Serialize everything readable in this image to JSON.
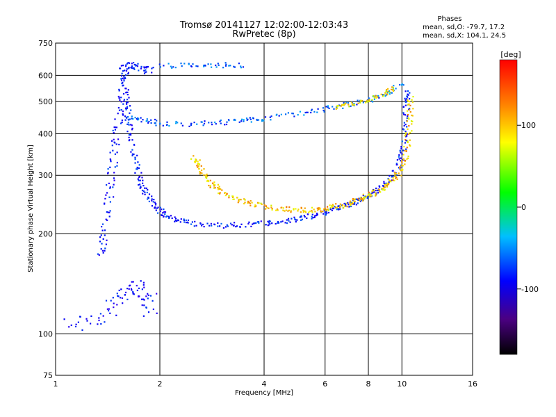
{
  "chart_data": {
    "type": "scatter",
    "title": "Tromsø 20141127 12:02:00-12:03:43",
    "subtitle": "RwPretec (8p)",
    "xlabel": "Frequency [MHz]",
    "ylabel": "Stationary phase Virtual Height [km]",
    "x_scale": "log",
    "y_scale": "log",
    "xlim": [
      1,
      16
    ],
    "ylim": [
      75,
      750
    ],
    "x_ticks": [
      1,
      2,
      4,
      6,
      8,
      10,
      16
    ],
    "y_ticks": [
      75,
      100,
      200,
      300,
      400,
      500,
      600,
      750
    ],
    "x_gridlines": [
      2,
      4,
      6,
      8,
      10
    ],
    "y_gridlines": [
      100,
      200,
      300,
      400,
      500,
      600
    ],
    "grid": true,
    "stats": {
      "heading": "Phases",
      "line1": "mean, sd,O: -79.7, 17.2",
      "line2": "mean, sd,X: 104.1, 24.5"
    },
    "colorbar": {
      "label": "[deg]",
      "range": [
        -180,
        180
      ],
      "ticks": [
        {
          "value": 100,
          "label": "100"
        },
        {
          "value": 0,
          "label": "0"
        },
        {
          "value": -100,
          "label": "-100"
        }
      ]
    },
    "traces": [
      {
        "name": "",
        "phase": -85,
        "spread": 0.035,
        "points": [
          [
            1.55,
            640
          ],
          [
            1.6,
            520
          ],
          [
            1.62,
            450
          ],
          [
            1.65,
            400
          ],
          [
            1.7,
            330
          ],
          [
            1.75,
            290
          ],
          [
            1.8,
            270
          ],
          [
            1.9,
            250
          ],
          [
            2.0,
            235
          ],
          [
            2.1,
            226
          ],
          [
            2.3,
            219
          ],
          [
            2.6,
            214
          ],
          [
            3.0,
            212
          ],
          [
            3.5,
            213
          ],
          [
            4.0,
            215
          ],
          [
            4.5,
            218
          ],
          [
            5.0,
            222
          ],
          [
            5.5,
            227
          ],
          [
            6.0,
            232
          ],
          [
            6.5,
            238
          ],
          [
            7.0,
            245
          ],
          [
            7.5,
            252
          ],
          [
            8.0,
            260
          ],
          [
            8.5,
            270
          ],
          [
            9.0,
            282
          ],
          [
            9.5,
            300
          ],
          [
            9.9,
            330
          ],
          [
            10.1,
            370
          ],
          [
            10.25,
            430
          ],
          [
            10.35,
            500
          ],
          [
            10.4,
            540
          ]
        ]
      },
      {
        "name": "",
        "phase": 125,
        "spread": 0.035,
        "points": [
          [
            2.5,
            340
          ],
          [
            2.6,
            320
          ],
          [
            2.7,
            300
          ],
          [
            2.85,
            280
          ],
          [
            3.0,
            268
          ],
          [
            3.3,
            256
          ],
          [
            3.6,
            248
          ],
          [
            4.0,
            242
          ],
          [
            4.5,
            238
          ],
          [
            5.0,
            236
          ],
          [
            5.5,
            236
          ],
          [
            6.0,
            238
          ],
          [
            6.5,
            242
          ],
          [
            7.0,
            247
          ],
          [
            7.5,
            253
          ],
          [
            8.0,
            260
          ],
          [
            8.5,
            268
          ],
          [
            9.0,
            278
          ],
          [
            9.5,
            292
          ],
          [
            10.0,
            315
          ],
          [
            10.3,
            350
          ],
          [
            10.45,
            400
          ],
          [
            10.55,
            460
          ],
          [
            10.6,
            520
          ]
        ]
      },
      {
        "name": "",
        "phase": -90,
        "spread": 0.05,
        "points": [
          [
            1.35,
            170
          ],
          [
            1.38,
            200
          ],
          [
            1.42,
            250
          ],
          [
            1.45,
            300
          ],
          [
            1.48,
            360
          ],
          [
            1.52,
            420
          ],
          [
            1.55,
            500
          ],
          [
            1.58,
            580
          ],
          [
            1.6,
            640
          ],
          [
            1.7,
            640
          ],
          [
            1.8,
            620
          ],
          [
            1.9,
            630
          ]
        ]
      },
      {
        "name": "",
        "phase": -65,
        "spread": 0.035,
        "points": [
          [
            1.6,
            450
          ],
          [
            1.8,
            440
          ],
          [
            2.0,
            430
          ],
          [
            2.5,
            428
          ],
          [
            3.0,
            432
          ],
          [
            3.5,
            438
          ],
          [
            4.0,
            445
          ],
          [
            5.0,
            460
          ],
          [
            6.0,
            475
          ],
          [
            7.0,
            490
          ],
          [
            8.0,
            505
          ],
          [
            9.0,
            530
          ],
          [
            10.0,
            570
          ]
        ]
      },
      {
        "name": "",
        "phase": 115,
        "spread": 0.03,
        "points": [
          [
            6.5,
            480
          ],
          [
            7.0,
            490
          ],
          [
            8.0,
            505
          ],
          [
            9.0,
            530
          ],
          [
            9.5,
            550
          ]
        ]
      },
      {
        "name": "",
        "phase": -70,
        "spread": 0.035,
        "points": [
          [
            2.0,
            640
          ],
          [
            2.5,
            645
          ],
          [
            3.0,
            645
          ],
          [
            3.5,
            640
          ]
        ]
      },
      {
        "name": "",
        "phase": -95,
        "spread": 0.1,
        "points": [
          [
            1.1,
            105
          ],
          [
            1.3,
            110
          ],
          [
            1.5,
            125
          ],
          [
            1.6,
            135
          ],
          [
            1.75,
            140
          ],
          [
            1.85,
            130
          ],
          [
            1.9,
            115
          ]
        ]
      }
    ]
  }
}
